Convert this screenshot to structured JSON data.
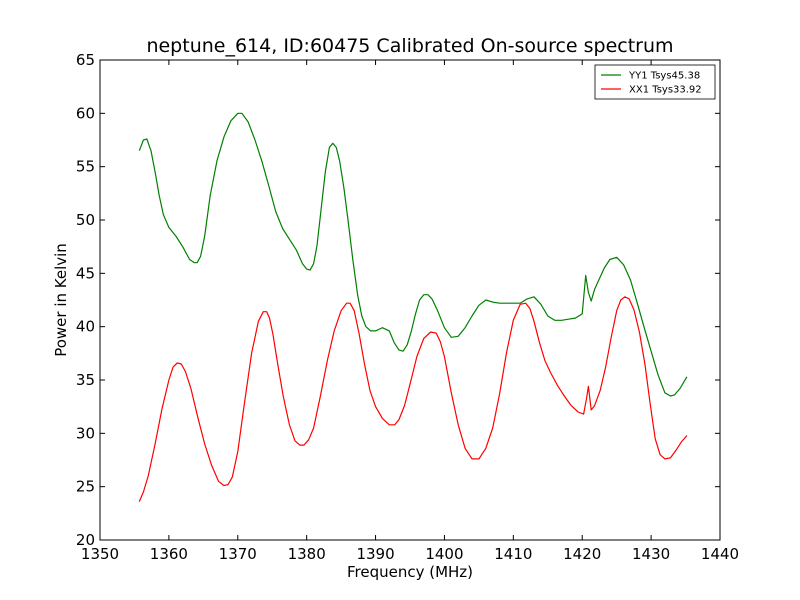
{
  "chart_data": {
    "type": "line",
    "title": "neptune_614, ID:60475 Calibrated On-source spectrum",
    "xlabel": "Frequency (MHz)",
    "ylabel": "Power in Kelvin",
    "xlim": [
      1350,
      1440
    ],
    "ylim": [
      20,
      65
    ],
    "xticks": [
      1350,
      1360,
      1370,
      1380,
      1390,
      1400,
      1410,
      1420,
      1430,
      1440
    ],
    "yticks": [
      20,
      25,
      30,
      35,
      40,
      45,
      50,
      55,
      60,
      65
    ],
    "grid": false,
    "legend_position": "top-right",
    "series": [
      {
        "name": "YY1 Tsys45.38",
        "color": "#008000",
        "x": [
          1355.7,
          1356.3,
          1356.8,
          1357.4,
          1358.0,
          1358.6,
          1359.2,
          1360.0,
          1361.0,
          1362.0,
          1363.0,
          1363.7,
          1364.1,
          1364.6,
          1365.2,
          1366.0,
          1367.0,
          1368.0,
          1369.0,
          1370.0,
          1370.6,
          1371.5,
          1372.5,
          1373.5,
          1374.5,
          1375.5,
          1376.5,
          1377.5,
          1378.5,
          1379.4,
          1380.0,
          1380.5,
          1381.0,
          1381.5,
          1382.1,
          1382.7,
          1383.3,
          1383.8,
          1384.3,
          1384.8,
          1385.4,
          1386.0,
          1386.7,
          1387.4,
          1388.0,
          1388.6,
          1389.3,
          1390.0,
          1391.0,
          1392.0,
          1392.7,
          1393.4,
          1394.0,
          1394.6,
          1395.2,
          1395.8,
          1396.4,
          1397.0,
          1397.6,
          1398.2,
          1399.0,
          1400.0,
          1401.0,
          1402.0,
          1403.0,
          1404.0,
          1405.0,
          1406.0,
          1407.0,
          1408.0,
          1409.0,
          1410.0,
          1411.0,
          1412.0,
          1413.0,
          1414.0,
          1415.0,
          1416.0,
          1417.0,
          1418.0,
          1419.0,
          1420.0,
          1420.5,
          1420.9,
          1421.3,
          1421.8,
          1422.5,
          1423.2,
          1424.0,
          1425.0,
          1426.0,
          1427.0,
          1428.0,
          1429.0,
          1430.0,
          1431.0,
          1432.0,
          1432.8,
          1433.4,
          1434.2,
          1435.2
        ],
        "y": [
          56.5,
          57.5,
          57.6,
          56.5,
          54.5,
          52.3,
          50.5,
          49.3,
          48.5,
          47.5,
          46.3,
          46.0,
          46.0,
          46.6,
          48.5,
          52.3,
          55.6,
          57.8,
          59.3,
          60.0,
          60.0,
          59.2,
          57.5,
          55.5,
          53.2,
          50.8,
          49.2,
          48.2,
          47.2,
          45.9,
          45.4,
          45.3,
          45.9,
          47.6,
          51.0,
          54.5,
          56.8,
          57.2,
          56.8,
          55.5,
          53.0,
          50.0,
          46.3,
          43.0,
          41.0,
          40.0,
          39.6,
          39.6,
          39.9,
          39.6,
          38.5,
          37.8,
          37.7,
          38.3,
          39.6,
          41.2,
          42.5,
          43.0,
          43.0,
          42.6,
          41.5,
          39.9,
          39.0,
          39.1,
          39.9,
          41.0,
          42.0,
          42.5,
          42.3,
          42.2,
          42.2,
          42.2,
          42.2,
          42.6,
          42.8,
          42.1,
          41.0,
          40.6,
          40.6,
          40.7,
          40.8,
          41.2,
          44.8,
          43.2,
          42.4,
          43.5,
          44.5,
          45.5,
          46.3,
          46.5,
          45.8,
          44.4,
          42.2,
          39.9,
          37.7,
          35.5,
          33.8,
          33.5,
          33.6,
          34.2,
          35.3
        ]
      },
      {
        "name": "XX1 Tsys33.92",
        "color": "#ff0000",
        "x": [
          1355.7,
          1356.3,
          1357.0,
          1358.0,
          1359.0,
          1360.0,
          1360.6,
          1361.2,
          1361.8,
          1362.4,
          1363.2,
          1364.2,
          1365.2,
          1366.2,
          1367.2,
          1368.0,
          1368.6,
          1369.2,
          1370.0,
          1371.0,
          1372.0,
          1373.0,
          1373.7,
          1374.2,
          1374.6,
          1375.1,
          1375.8,
          1376.6,
          1377.5,
          1378.3,
          1379.0,
          1379.6,
          1380.3,
          1381.0,
          1382.0,
          1383.0,
          1384.0,
          1385.0,
          1385.8,
          1386.3,
          1386.9,
          1387.6,
          1388.4,
          1389.2,
          1390.0,
          1391.0,
          1392.0,
          1392.8,
          1393.4,
          1394.2,
          1395.0,
          1396.0,
          1397.0,
          1398.0,
          1398.8,
          1399.4,
          1400.0,
          1401.0,
          1402.0,
          1403.0,
          1404.0,
          1405.0,
          1406.0,
          1407.0,
          1408.0,
          1409.0,
          1410.0,
          1411.0,
          1411.8,
          1412.4,
          1413.0,
          1413.8,
          1414.6,
          1415.4,
          1416.4,
          1417.4,
          1418.4,
          1419.4,
          1420.2,
          1420.6,
          1420.9,
          1421.3,
          1421.8,
          1422.6,
          1423.4,
          1424.2,
          1425.0,
          1425.6,
          1426.2,
          1426.8,
          1427.5,
          1428.3,
          1429.1,
          1429.9,
          1430.6,
          1431.3,
          1432.0,
          1432.8,
          1433.6,
          1434.4,
          1435.2
        ],
        "y": [
          23.6,
          24.5,
          26.0,
          29.0,
          32.3,
          35.0,
          36.2,
          36.6,
          36.5,
          35.8,
          34.2,
          31.5,
          29.0,
          27.0,
          25.5,
          25.1,
          25.2,
          25.9,
          28.3,
          33.0,
          37.5,
          40.5,
          41.4,
          41.4,
          40.8,
          39.3,
          36.5,
          33.5,
          30.8,
          29.3,
          28.9,
          28.9,
          29.4,
          30.5,
          33.5,
          36.8,
          39.6,
          41.5,
          42.2,
          42.2,
          41.5,
          39.4,
          36.5,
          34.0,
          32.5,
          31.4,
          30.8,
          30.8,
          31.3,
          32.6,
          34.6,
          37.2,
          38.9,
          39.5,
          39.4,
          38.6,
          37.2,
          33.8,
          30.8,
          28.6,
          27.6,
          27.6,
          28.6,
          30.5,
          33.7,
          37.5,
          40.6,
          42.1,
          42.2,
          41.7,
          40.5,
          38.5,
          36.8,
          35.7,
          34.5,
          33.5,
          32.6,
          32.0,
          31.8,
          33.2,
          34.4,
          32.2,
          32.6,
          34.0,
          36.2,
          39.0,
          41.5,
          42.5,
          42.8,
          42.6,
          41.6,
          39.5,
          36.5,
          32.6,
          29.5,
          28.0,
          27.6,
          27.7,
          28.4,
          29.2,
          29.8
        ]
      }
    ]
  }
}
